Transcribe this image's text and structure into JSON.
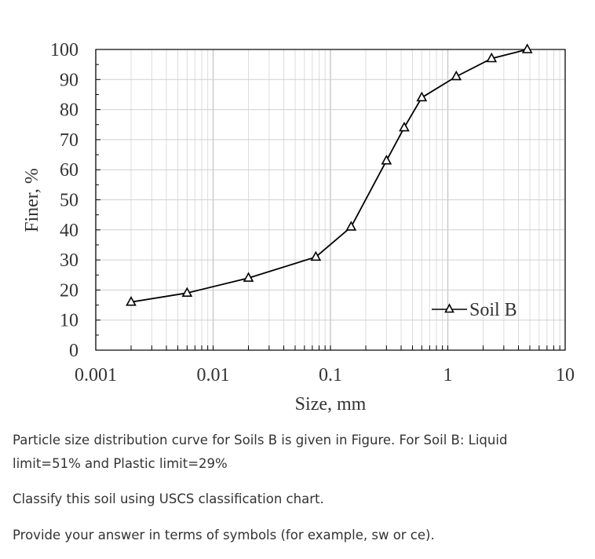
{
  "chart_data": {
    "type": "line",
    "x_scale": "log",
    "xlim": [
      0.001,
      10
    ],
    "ylim": [
      0,
      100
    ],
    "xlabel": "Size, mm",
    "ylabel": "Finer, %",
    "x_ticks": [
      "0.001",
      "0.01",
      "0.1",
      "1",
      "10"
    ],
    "y_ticks": [
      "0",
      "10",
      "20",
      "30",
      "40",
      "50",
      "60",
      "70",
      "80",
      "90",
      "100"
    ],
    "grid": true,
    "legend_position": "bottom-right",
    "series": [
      {
        "name": "Soil B",
        "marker": "triangle",
        "color": "#000000",
        "x": [
          0.002,
          0.006,
          0.02,
          0.075,
          0.15,
          0.3,
          0.425,
          0.6,
          1.18,
          2.36,
          4.75
        ],
        "y": [
          16,
          19,
          24,
          31,
          41,
          63,
          74,
          84,
          91,
          97,
          100
        ]
      }
    ]
  },
  "question": {
    "line1": "Particle size distribution curve for Soils B is given in Figure. For Soil B: Liquid",
    "line2": "limit=51% and Plastic limit=29%",
    "line3": "Classify this soil using USCS classification chart.",
    "line4": "Provide your answer in terms of symbols (for example, sw or ce)."
  }
}
